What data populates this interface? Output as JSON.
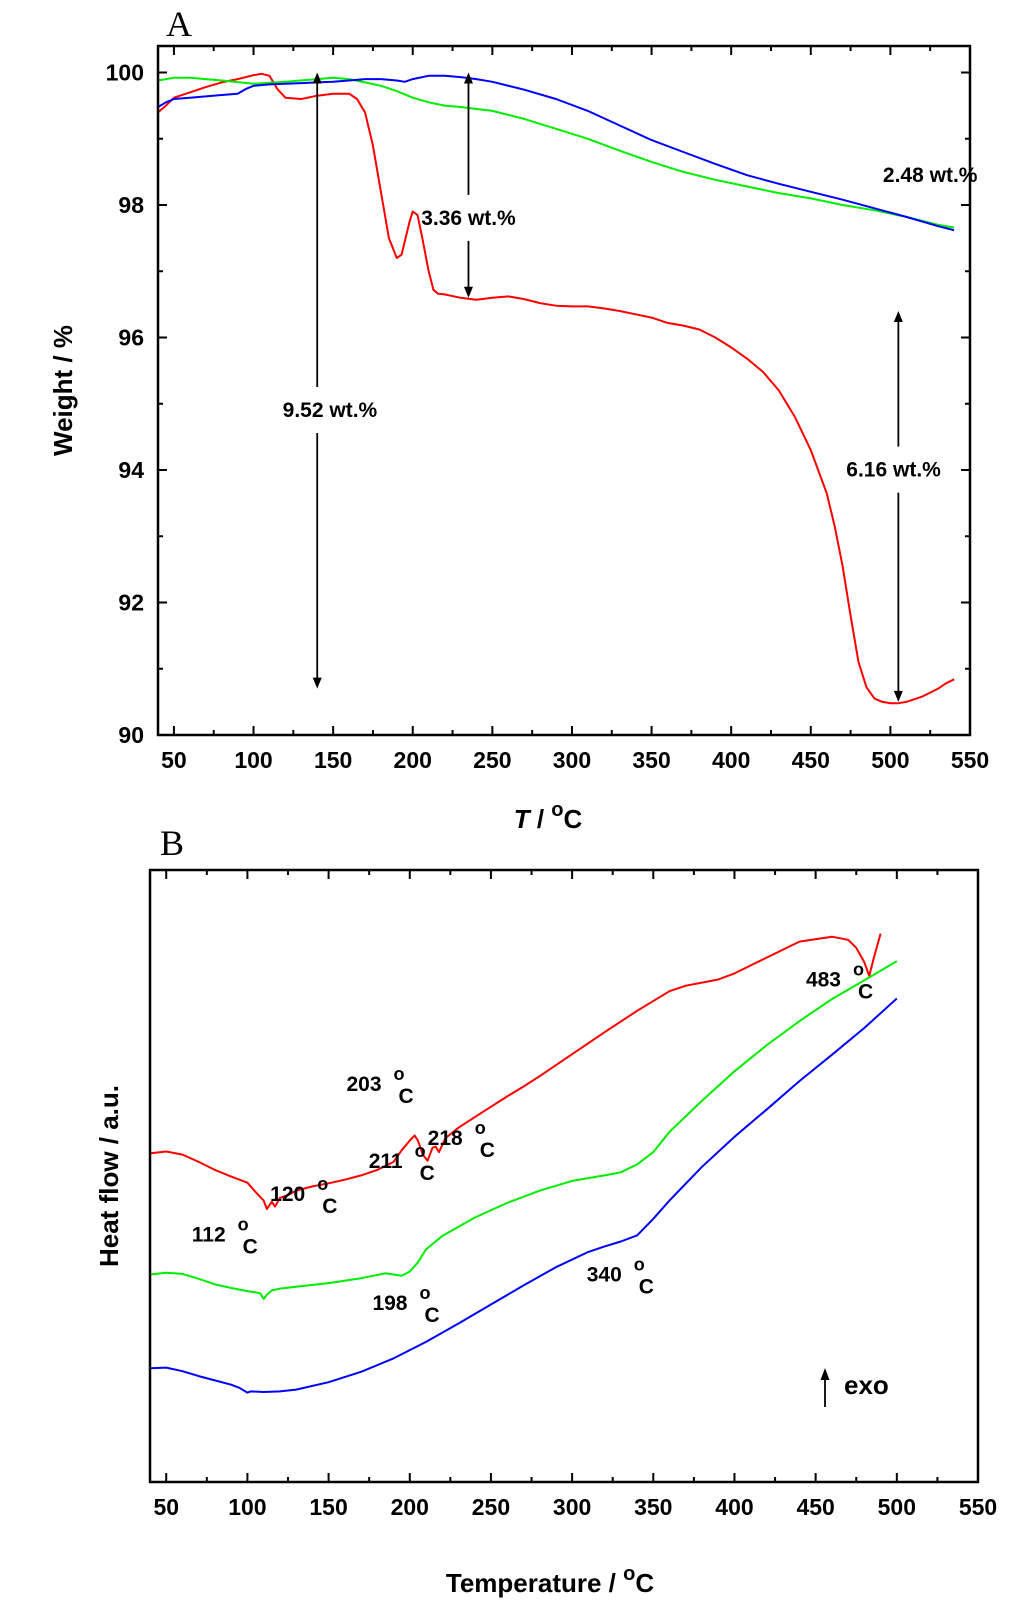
{
  "chart_data": [
    {
      "panel": "A",
      "type": "line",
      "xlabel_italic": "T",
      "xlabel_rest": " / ",
      "xlabel_sup": "o",
      "xlabel_unit": "C",
      "ylabel": "Weight / %",
      "xlim": [
        40,
        550
      ],
      "ylim": [
        90,
        100.4
      ],
      "x_ticks": [
        50,
        100,
        150,
        200,
        250,
        300,
        350,
        400,
        450,
        500,
        550
      ],
      "y_ticks": [
        90,
        92,
        94,
        96,
        98,
        100
      ],
      "colors": [
        "#ff0000",
        "#00ee00",
        "#0000ff"
      ],
      "series": [
        {
          "color": "#ff0000",
          "x": [
            40,
            45,
            50,
            60,
            70,
            80,
            90,
            100,
            105,
            110,
            115,
            120,
            130,
            140,
            150,
            160,
            165,
            170,
            175,
            180,
            185,
            190,
            193,
            195,
            198,
            200,
            203,
            206,
            210,
            213,
            216,
            220,
            230,
            240,
            250,
            260,
            270,
            280,
            290,
            300,
            310,
            320,
            330,
            340,
            350,
            360,
            370,
            380,
            390,
            400,
            410,
            420,
            430,
            440,
            450,
            460,
            465,
            470,
            475,
            480,
            485,
            490,
            495,
            500,
            505,
            510,
            520,
            530,
            535,
            540
          ],
          "y": [
            99.4,
            99.5,
            99.62,
            99.7,
            99.78,
            99.85,
            99.9,
            99.96,
            99.98,
            99.95,
            99.75,
            99.62,
            99.6,
            99.65,
            99.68,
            99.68,
            99.6,
            99.4,
            98.9,
            98.2,
            97.5,
            97.2,
            97.25,
            97.45,
            97.75,
            97.9,
            97.85,
            97.5,
            97.0,
            96.72,
            96.66,
            96.65,
            96.6,
            96.57,
            96.6,
            96.62,
            96.58,
            96.52,
            96.48,
            96.47,
            96.47,
            96.44,
            96.4,
            96.35,
            96.3,
            96.22,
            96.18,
            96.12,
            96.0,
            95.85,
            95.68,
            95.48,
            95.2,
            94.8,
            94.3,
            93.65,
            93.15,
            92.55,
            91.8,
            91.1,
            90.72,
            90.55,
            90.5,
            90.48,
            90.48,
            90.5,
            90.58,
            90.7,
            90.78,
            90.84
          ]
        },
        {
          "color": "#00ee00",
          "x": [
            40,
            50,
            60,
            80,
            100,
            120,
            140,
            150,
            160,
            170,
            180,
            190,
            200,
            210,
            220,
            230,
            250,
            270,
            290,
            310,
            330,
            350,
            370,
            390,
            410,
            430,
            450,
            470,
            490,
            510,
            530,
            540
          ],
          "y": [
            99.88,
            99.92,
            99.92,
            99.88,
            99.83,
            99.86,
            99.9,
            99.92,
            99.9,
            99.85,
            99.8,
            99.72,
            99.62,
            99.55,
            99.5,
            99.48,
            99.42,
            99.3,
            99.15,
            99.0,
            98.82,
            98.65,
            98.5,
            98.38,
            98.28,
            98.18,
            98.1,
            98.0,
            97.92,
            97.82,
            97.7,
            97.66
          ]
        },
        {
          "color": "#0000ff",
          "x": [
            40,
            45,
            50,
            60,
            70,
            80,
            90,
            95,
            100,
            110,
            120,
            130,
            140,
            150,
            160,
            170,
            180,
            190,
            195,
            200,
            210,
            220,
            230,
            240,
            250,
            270,
            290,
            310,
            330,
            350,
            370,
            390,
            410,
            430,
            450,
            470,
            490,
            510,
            530,
            540
          ],
          "y": [
            99.48,
            99.55,
            99.6,
            99.62,
            99.64,
            99.66,
            99.68,
            99.75,
            99.8,
            99.82,
            99.83,
            99.84,
            99.85,
            99.86,
            99.88,
            99.9,
            99.9,
            99.88,
            99.86,
            99.9,
            99.95,
            99.95,
            99.93,
            99.9,
            99.86,
            99.74,
            99.6,
            99.42,
            99.2,
            98.98,
            98.8,
            98.62,
            98.45,
            98.32,
            98.2,
            98.08,
            97.95,
            97.82,
            97.68,
            97.62
          ]
        }
      ],
      "arrows": [
        {
          "x": 140,
          "y1": 100.0,
          "y2": 90.7,
          "label": "9.52 wt.%",
          "label_x": 148,
          "label_y": 94.8
        },
        {
          "x": 235,
          "y1": 100.0,
          "y2": 96.6,
          "label": "3.36 wt.%",
          "label_x": 235,
          "label_y": 97.7
        },
        {
          "x": 505,
          "y1": 96.4,
          "y2": 90.5,
          "label": "6.16 wt.%",
          "label_x": 502,
          "label_y": 93.9
        }
      ],
      "labels": [
        {
          "text": "2.48 wt.%",
          "x": 525,
          "y": 98.35
        }
      ]
    },
    {
      "panel": "B",
      "type": "line",
      "xlabel": "Temperature / ",
      "xlabel_sup": "o",
      "xlabel_unit": "C",
      "ylabel": "Heat flow / a.u.",
      "xlim": [
        40,
        550
      ],
      "ylim": [
        0,
        100
      ],
      "x_ticks": [
        50,
        100,
        150,
        200,
        250,
        300,
        350,
        400,
        450,
        500,
        550
      ],
      "colors": [
        "#ff0000",
        "#00ee00",
        "#0000ff"
      ],
      "series": [
        {
          "color": "#ff0000",
          "x": [
            40,
            50,
            60,
            70,
            80,
            90,
            100,
            105,
            110,
            112,
            115,
            117,
            120,
            125,
            130,
            140,
            150,
            160,
            170,
            180,
            190,
            195,
            200,
            203,
            205,
            208,
            211,
            214,
            216,
            218,
            222,
            230,
            240,
            250,
            260,
            270,
            280,
            300,
            320,
            340,
            360,
            370,
            380,
            390,
            400,
            420,
            440,
            460,
            470,
            475,
            480,
            483,
            486,
            490
          ],
          "y": [
            53.7,
            54.0,
            53.5,
            52.3,
            51.0,
            49.9,
            48.9,
            47.4,
            46.0,
            44.6,
            45.8,
            45.0,
            46.4,
            46.9,
            47.6,
            48.3,
            48.8,
            49.4,
            50.1,
            51.0,
            52.3,
            54.2,
            55.8,
            56.6,
            55.8,
            53.5,
            52.5,
            54.6,
            54.8,
            53.9,
            56.2,
            57.9,
            59.6,
            61.3,
            63.0,
            64.6,
            66.3,
            69.9,
            73.5,
            77.0,
            80.2,
            81.1,
            81.6,
            82.1,
            83.1,
            85.7,
            88.3,
            89.1,
            88.6,
            87.3,
            84.9,
            82.7,
            85.8,
            89.6
          ]
        },
        {
          "color": "#00ee00",
          "x": [
            40,
            50,
            60,
            70,
            80,
            90,
            100,
            105,
            108,
            110,
            112,
            115,
            120,
            130,
            150,
            170,
            185,
            195,
            200,
            205,
            210,
            220,
            240,
            260,
            280,
            300,
            320,
            330,
            340,
            350,
            360,
            380,
            400,
            420,
            440,
            460,
            480,
            500
          ],
          "y": [
            33.9,
            34.2,
            34.0,
            33.2,
            32.3,
            31.7,
            31.2,
            31.0,
            30.8,
            29.9,
            30.6,
            31.3,
            31.6,
            31.9,
            32.5,
            33.3,
            34.1,
            33.7,
            34.4,
            35.9,
            38.0,
            40.2,
            43.2,
            45.6,
            47.6,
            49.2,
            50.1,
            50.6,
            51.9,
            53.9,
            57.2,
            62.3,
            67.1,
            71.4,
            75.3,
            78.9,
            82.0,
            85.1
          ]
        },
        {
          "color": "#0000ff",
          "x": [
            40,
            50,
            60,
            70,
            80,
            90,
            95,
            100,
            102,
            110,
            120,
            130,
            150,
            170,
            190,
            210,
            230,
            250,
            270,
            290,
            310,
            320,
            330,
            340,
            350,
            360,
            380,
            400,
            420,
            440,
            460,
            480,
            500
          ],
          "y": [
            18.6,
            18.7,
            18.1,
            17.3,
            16.6,
            15.9,
            15.4,
            14.6,
            14.8,
            14.7,
            14.8,
            15.1,
            16.3,
            18.0,
            20.2,
            22.9,
            25.9,
            29.0,
            32.1,
            35.1,
            37.6,
            38.5,
            39.3,
            40.3,
            43.0,
            46.0,
            51.5,
            56.4,
            60.9,
            65.5,
            69.8,
            74.2,
            79.0
          ]
        }
      ],
      "annotations": [
        {
          "value": "112",
          "sup": "o",
          "unit": "C",
          "x": 94,
          "y": 39.3,
          "unit_dx": 3
        },
        {
          "value": "120",
          "sup": "o",
          "unit": "C",
          "x": 143,
          "y": 45.9,
          "unit_dx": 3
        },
        {
          "value": "203",
          "sup": "o",
          "unit": "C",
          "x": 190,
          "y": 63.9,
          "unit_dx": 3
        },
        {
          "value": "211",
          "sup": "o",
          "unit": "C",
          "x": 203,
          "y": 51.3,
          "unit_dx": 3
        },
        {
          "value": "218",
          "sup": "o",
          "unit": "C",
          "x": 240,
          "y": 55.1,
          "unit_dx": 3
        },
        {
          "value": "198",
          "sup": "o",
          "unit": "C",
          "x": 206,
          "y": 28.1,
          "unit_dx": 3
        },
        {
          "value": "340",
          "sup": "o",
          "unit": "C",
          "x": 338,
          "y": 32.8,
          "unit_dx": 3
        },
        {
          "value": "483",
          "sup": "o",
          "unit": "C",
          "x": 473,
          "y": 81.0,
          "unit_dx": 3
        }
      ],
      "exo_label": "exo"
    }
  ]
}
